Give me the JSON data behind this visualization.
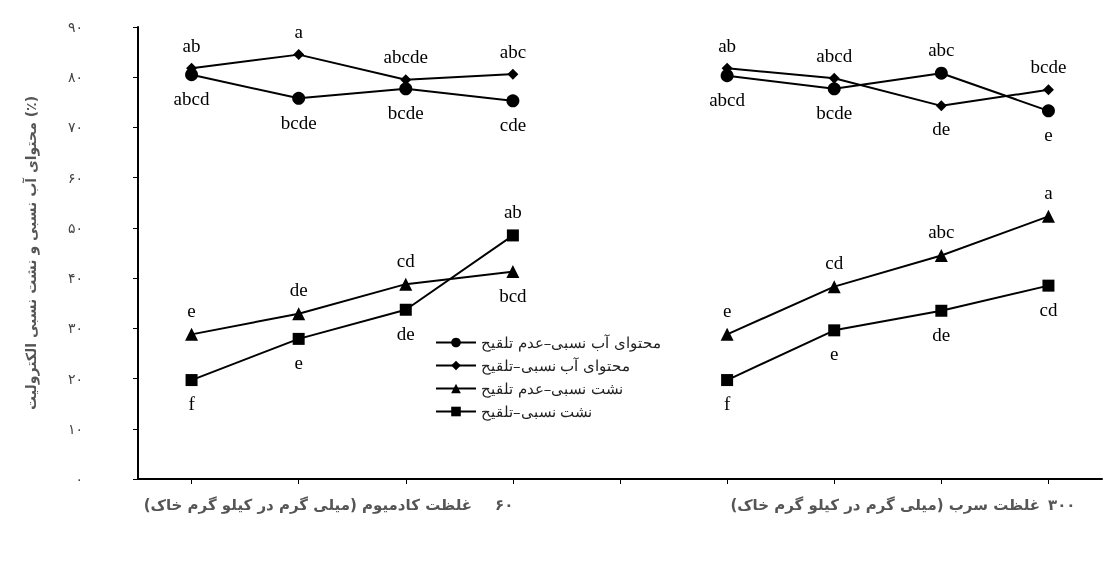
{
  "chart_data": {
    "type": "line",
    "ylabel": "محتوای آب نسبی و نشت نسبی الکترولیت (٪)",
    "categories": [
      null,
      null,
      null,
      null,
      null,
      null,
      null,
      null,
      null
    ],
    "ylim": [
      0,
      90
    ],
    "yticks": [
      {
        "value": 0,
        "label": "۰"
      },
      {
        "value": 10,
        "label": "۱۰"
      },
      {
        "value": 20,
        "label": "۲۰"
      },
      {
        "value": 30,
        "label": "۳۰"
      },
      {
        "value": 40,
        "label": "۴۰"
      },
      {
        "value": 50,
        "label": "۵۰"
      },
      {
        "value": 60,
        "label": "۶۰"
      },
      {
        "value": 70,
        "label": "۷۰"
      },
      {
        "value": 80,
        "label": "۸۰"
      },
      {
        "value": 90,
        "label": "۹۰"
      }
    ],
    "grid": false,
    "legend": "bottom",
    "series": [
      {
        "name": "محتوای آب نسبی–عدم تلقیح",
        "color": "#000000",
        "marker": "circle",
        "values": [
          80.5,
          75.8,
          77.7,
          75.3,
          null,
          80.3,
          77.7,
          80.8,
          73.3
        ],
        "value_labels": [
          "abcd",
          "bcde",
          "bcde",
          "cde",
          null,
          "abcd",
          "bcde",
          "abc",
          "e"
        ]
      },
      {
        "name": "محتوای آب نسبی–تلقیح",
        "color": "#000000",
        "marker": "diamond",
        "values": [
          81.8,
          84.5,
          79.5,
          80.6,
          null,
          81.8,
          79.8,
          74.3,
          77.5
        ],
        "value_labels": [
          "ab",
          "a",
          "abcde",
          "abc",
          null,
          "ab",
          "abcd",
          "de",
          "bcde"
        ]
      },
      {
        "name": "نشت نسبی–عدم تلقیح",
        "color": "#000000",
        "marker": "triangle",
        "values": [
          28.8,
          32.9,
          38.8,
          41.3,
          null,
          28.8,
          38.3,
          44.5,
          52.3
        ],
        "value_labels": [
          "e",
          "de",
          "cd",
          "bcd",
          null,
          "e",
          "cd",
          "abc",
          "a"
        ]
      },
      {
        "name": "نشت نسبی–تلقیح",
        "color": "#000000",
        "marker": "square",
        "values": [
          19.7,
          27.9,
          33.7,
          48.5,
          null,
          19.7,
          29.6,
          33.5,
          38.5
        ],
        "value_labels": [
          "f",
          "e",
          "de",
          "ab",
          null,
          "f",
          "e",
          "de",
          "cd"
        ]
      }
    ],
    "annotations": [
      "۶۰",
      "غلظت کادمیوم (میلی گرم در کیلو گرم خاک)",
      "۳۰۰",
      "غلظت سرب (میلی گرم در کیلو گرم خاک)"
    ]
  }
}
